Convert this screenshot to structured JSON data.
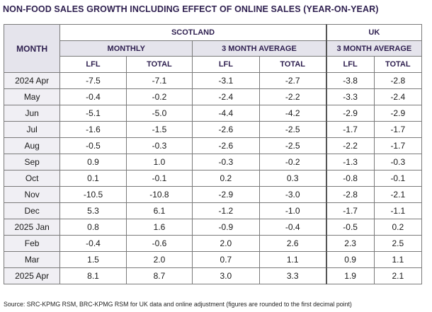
{
  "title": "NON-FOOD SALES GROWTH INCLUDING EFFECT OF ONLINE SALES (YEAR-ON-YEAR)",
  "headers": {
    "month": "MONTH",
    "scotland": "SCOTLAND",
    "uk": "UK",
    "monthly": "MONTHLY",
    "three_month_avg": "3 MONTH AVERAGE",
    "uk_three_month_avg": "3 MONTH AVERAGE",
    "lfl": "LFL",
    "total": "TOTAL"
  },
  "rows": [
    {
      "month": "2024 Apr",
      "values": [
        "-7.5",
        "-7.1",
        "-3.1",
        "-2.7",
        "-3.8",
        "-2.8"
      ]
    },
    {
      "month": "May",
      "values": [
        "-0.4",
        "-0.2",
        "-2.4",
        "-2.2",
        "-3.3",
        "-2.4"
      ]
    },
    {
      "month": "Jun",
      "values": [
        "-5.1",
        "-5.0",
        "-4.4",
        "-4.2",
        "-2.9",
        "-2.9"
      ]
    },
    {
      "month": "Jul",
      "values": [
        "-1.6",
        "-1.5",
        "-2.6",
        "-2.5",
        "-1.7",
        "-1.7"
      ]
    },
    {
      "month": "Aug",
      "values": [
        "-0.5",
        "-0.3",
        "-2.6",
        "-2.5",
        "-2.2",
        "-1.7"
      ]
    },
    {
      "month": "Sep",
      "values": [
        "0.9",
        "1.0",
        "-0.3",
        "-0.2",
        "-1.3",
        "-0.3"
      ]
    },
    {
      "month": "Oct",
      "values": [
        "0.1",
        "-0.1",
        "0.2",
        "0.3",
        "-0.8",
        "-0.1"
      ]
    },
    {
      "month": "Nov",
      "values": [
        "-10.5",
        "-10.8",
        "-2.9",
        "-3.0",
        "-2.8",
        "-2.1"
      ]
    },
    {
      "month": "Dec",
      "values": [
        "5.3",
        "6.1",
        "-1.2",
        "-1.0",
        "-1.7",
        "-1.1"
      ]
    },
    {
      "month": "2025 Jan",
      "values": [
        "0.8",
        "1.6",
        "-0.9",
        "-0.4",
        "-0.5",
        "0.2"
      ]
    },
    {
      "month": "Feb",
      "values": [
        "-0.4",
        "-0.6",
        "2.0",
        "2.6",
        "2.3",
        "2.5"
      ]
    },
    {
      "month": "Mar",
      "values": [
        "1.5",
        "2.0",
        "0.7",
        "1.1",
        "0.9",
        "1.1"
      ]
    },
    {
      "month": "2025 Apr",
      "values": [
        "8.1",
        "8.7",
        "3.0",
        "3.3",
        "1.9",
        "2.1"
      ]
    }
  ],
  "source": "Source: SRC-KPMG RSM, BRC-KPMG RSM for UK data and online adjustment (figures are rounded to the first decimal point)",
  "colors": {
    "heading": "#2e1f4f",
    "header_fill": "#e5e4ec",
    "month_fill": "#f0eff4"
  }
}
